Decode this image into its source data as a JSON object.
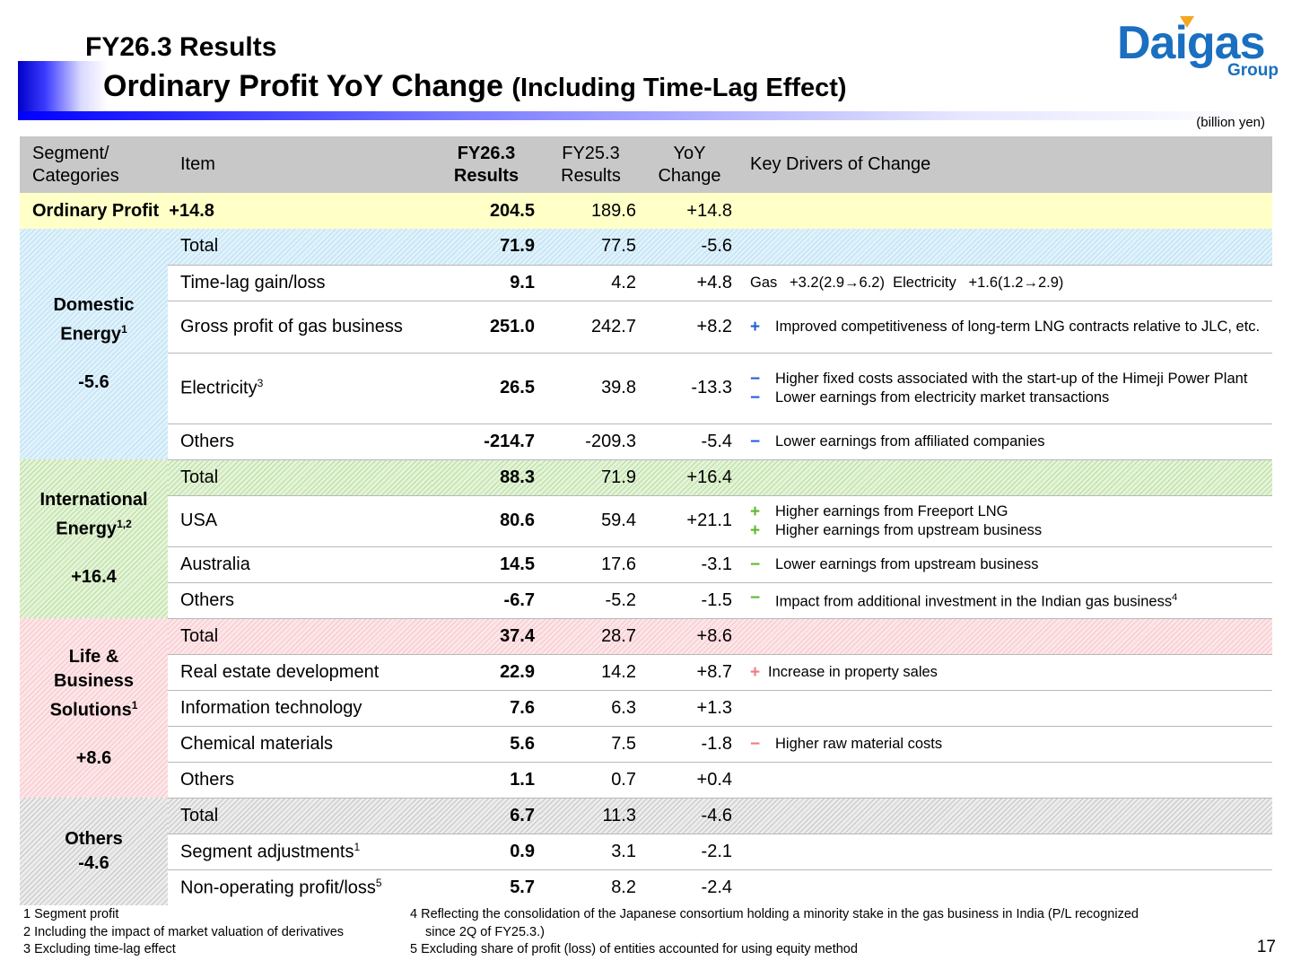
{
  "header": {
    "title_line1": "FY26.3 Results",
    "title_line2_main": "Ordinary Profit YoY Change",
    "title_line2_sub": "(Including Time-Lag Effect)",
    "logo_word": "Daigas",
    "logo_group": "Group",
    "unit": "(billion yen)"
  },
  "columns": {
    "segment": [
      "Segment/",
      "Categories"
    ],
    "item": "Item",
    "fy26": [
      "FY26.3",
      "Results"
    ],
    "fy25": [
      "FY25.3",
      "Results"
    ],
    "yoy": [
      "YoY",
      "Change"
    ],
    "drivers": "Key Drivers of Change"
  },
  "ordinary_profit": {
    "label": "Ordinary Profit",
    "change_label": "+14.8",
    "fy26": "204.5",
    "fy25": "189.6",
    "yoy": "+14.8"
  },
  "domestic": {
    "name_1": "Domestic",
    "name_2": "Energy",
    "sup": "1",
    "change": "-5.6",
    "rows": [
      {
        "item": "Total",
        "fy26": "71.9",
        "fy25": "77.5",
        "yoy": "-5.6"
      },
      {
        "item": "Time-lag gain/loss",
        "fy26": "9.1",
        "fy25": "4.2",
        "yoy": "+4.8",
        "driver": "Gas   +3.2(2.9→6.2)  Electricity   +1.6(1.2→2.9)"
      },
      {
        "item": "Gross profit of gas business",
        "fy26": "251.0",
        "fy25": "242.7",
        "yoy": "+8.2",
        "sign1": "+",
        "driver1": "Improved competitiveness of long-term LNG contracts relative to JLC, etc."
      },
      {
        "item": "Electricity",
        "sup": "3",
        "fy26": "26.5",
        "fy25": "39.8",
        "yoy": "-13.3",
        "sign1": "−",
        "driver1": "Higher fixed costs associated with the start-up of the Himeji Power Plant",
        "sign2": "−",
        "driver2": "Lower earnings from electricity market transactions"
      },
      {
        "item": "Others",
        "fy26": "-214.7",
        "fy25": "-209.3",
        "yoy": "-5.4",
        "sign1": "−",
        "driver1": "Lower earnings from affiliated companies"
      }
    ]
  },
  "international": {
    "name_1": "International",
    "name_2": "Energy",
    "sup": "1,2",
    "change": "+16.4",
    "rows": [
      {
        "item": "Total",
        "fy26": "88.3",
        "fy25": "71.9",
        "yoy": "+16.4"
      },
      {
        "item": "USA",
        "fy26": "80.6",
        "fy25": "59.4",
        "yoy": "+21.1",
        "sign1": "+",
        "driver1": "Higher earnings from Freeport LNG",
        "sign2": "+",
        "driver2": "Higher earnings from upstream business"
      },
      {
        "item": "Australia",
        "fy26": "14.5",
        "fy25": "17.6",
        "yoy": "-3.1",
        "sign1": "−",
        "driver1": "Lower earnings from upstream business"
      },
      {
        "item": "Others",
        "fy26": "-6.7",
        "fy25": "-5.2",
        "yoy": "-1.5",
        "sign1": "−",
        "driver1": "Impact from additional investment in the Indian gas business",
        "sup": "4"
      }
    ]
  },
  "life": {
    "name_1": "Life &",
    "name_2": "Business",
    "name_3": "Solutions",
    "sup": "1",
    "change": "+8.6",
    "rows": [
      {
        "item": "Total",
        "fy26": "37.4",
        "fy25": "28.7",
        "yoy": "+8.6"
      },
      {
        "item": "Real estate development",
        "fy26": "22.9",
        "fy25": "14.2",
        "yoy": "+8.7",
        "sign1": "+",
        "driver1": "Increase in property sales"
      },
      {
        "item": "Information technology",
        "fy26": "7.6",
        "fy25": "6.3",
        "yoy": "+1.3"
      },
      {
        "item": "Chemical materials",
        "fy26": "5.6",
        "fy25": "7.5",
        "yoy": "-1.8",
        "sign1": "−",
        "driver1": "Higher raw material costs"
      },
      {
        "item": "Others",
        "fy26": "1.1",
        "fy25": "0.7",
        "yoy": "+0.4"
      }
    ]
  },
  "others": {
    "name_1": "Others",
    "change": "-4.6",
    "rows": [
      {
        "item": "Total",
        "fy26": "6.7",
        "fy25": "11.3",
        "yoy": "-4.6"
      },
      {
        "item": "Segment adjustments",
        "sup": "1",
        "fy26": "0.9",
        "fy25": "3.1",
        "yoy": "-2.1"
      },
      {
        "item": "Non-operating profit/loss",
        "sup": "5",
        "fy26": "5.7",
        "fy25": "8.2",
        "yoy": "-2.4"
      }
    ]
  },
  "footnotes": {
    "n1": "1 Segment profit",
    "n2": "2 Including the impact of market valuation of derivatives",
    "n3": "3 Excluding time-lag effect",
    "n4a": "4 Reflecting the consolidation of the Japanese consortium holding a minority stake in the gas business in India (P/L recognized",
    "n4b": "since 2Q of FY25.3.)",
    "n5": "5 Excluding share of profit (loss) of entities accounted for using equity method"
  },
  "page_number": "17",
  "colors": {
    "header_blue": "#0000ff",
    "logo_blue": "#1a6fc0",
    "highlight_yellow": "#ffffc8",
    "plus_blue": "#1f5fd6",
    "green": "#5cb82e",
    "pink": "#f07a86"
  }
}
